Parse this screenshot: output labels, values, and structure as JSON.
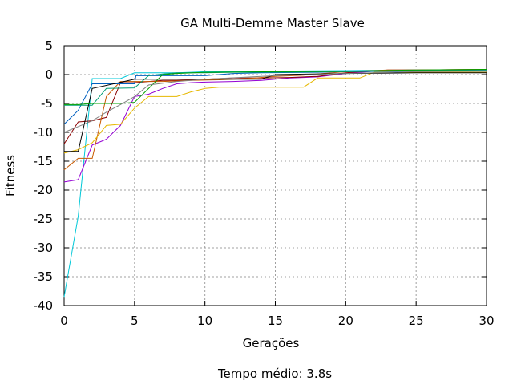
{
  "chart_data": {
    "type": "line",
    "title": "GA Multi-Demme Master Slave",
    "xlabel": "Gerações",
    "ylabel": "Fitness",
    "footer": "Tempo médio: 3.8s",
    "xlim": [
      0,
      30
    ],
    "ylim": [
      -40,
      5
    ],
    "xticks": [
      0,
      5,
      10,
      15,
      20,
      25,
      30
    ],
    "yticks": [
      -40,
      -35,
      -30,
      -25,
      -20,
      -15,
      -10,
      -5,
      0,
      5
    ],
    "grid": true,
    "legend": "none",
    "series": [
      {
        "color": "#00c8d8",
        "x": [
          0,
          1,
          2,
          3,
          4,
          5,
          6,
          7,
          8,
          9,
          10,
          15,
          20,
          25,
          30
        ],
        "y": [
          -38.5,
          -24.5,
          -0.7,
          -0.7,
          -0.7,
          0.3,
          0.3,
          0.3,
          0.3,
          0.4,
          0.5,
          0.6,
          0.7,
          0.8,
          0.8
        ]
      },
      {
        "color": "#9400d3",
        "x": [
          0,
          1,
          2,
          3,
          4,
          5,
          6,
          7,
          8,
          9,
          10,
          12,
          14,
          16,
          18,
          20,
          22,
          25,
          30
        ],
        "y": [
          -18.6,
          -18.2,
          -12.2,
          -11.2,
          -8.8,
          -3.8,
          -3.4,
          -2.4,
          -1.6,
          -1.4,
          -1.3,
          -1.2,
          -1.0,
          -0.6,
          -0.4,
          0.2,
          0.6,
          0.7,
          0.8
        ]
      },
      {
        "color": "#8b0000",
        "x": [
          0,
          1,
          2,
          3,
          4,
          5,
          6,
          7,
          8,
          10,
          12,
          14,
          16,
          18,
          20,
          23,
          25,
          30
        ],
        "y": [
          -12.0,
          -8.2,
          -8.0,
          -7.4,
          -1.4,
          -1.4,
          -1.2,
          -1.0,
          -1.0,
          -0.8,
          -0.6,
          -0.6,
          -0.5,
          -0.3,
          0.3,
          0.8,
          0.8,
          0.9
        ]
      },
      {
        "color": "#c85a00",
        "x": [
          0,
          1,
          2,
          3,
          4,
          5,
          7,
          9,
          11,
          13,
          15,
          17,
          20,
          23,
          25,
          30
        ],
        "y": [
          -16.5,
          -14.5,
          -14.5,
          -3.8,
          -1.2,
          -1.2,
          -1.2,
          -1.0,
          -0.9,
          -0.7,
          -0.3,
          -0.1,
          0.5,
          0.8,
          0.8,
          0.9
        ]
      },
      {
        "color": "#e6b800",
        "x": [
          0,
          1,
          2,
          3,
          4,
          5,
          6,
          7,
          8,
          9,
          10,
          11,
          12,
          17,
          18,
          20,
          21,
          22,
          30
        ],
        "y": [
          -13.6,
          -13.0,
          -11.8,
          -8.8,
          -8.6,
          -5.8,
          -3.8,
          -3.8,
          -3.8,
          -3.0,
          -2.4,
          -2.2,
          -2.2,
          -2.2,
          -0.6,
          -0.6,
          -0.6,
          0.4,
          0.4
        ]
      },
      {
        "color": "#0060c0",
        "x": [
          0,
          1,
          2,
          3,
          5,
          5.1,
          7,
          10,
          12,
          14,
          18,
          20,
          25,
          30
        ],
        "y": [
          -8.6,
          -6.2,
          -1.6,
          -1.6,
          -1.6,
          -0.2,
          -0.2,
          -0.2,
          0.2,
          0.3,
          0.4,
          0.5,
          0.6,
          0.6
        ]
      },
      {
        "color": "#009e73",
        "x": [
          0,
          1,
          2,
          3,
          5,
          6,
          7,
          8,
          10,
          12,
          15,
          20,
          25,
          30
        ],
        "y": [
          -5.3,
          -5.3,
          -5.3,
          -2.4,
          -2.3,
          -0.2,
          0.1,
          0.3,
          0.3,
          0.4,
          0.4,
          0.5,
          0.7,
          0.8
        ]
      },
      {
        "color": "#000000",
        "x": [
          0,
          1,
          2,
          5,
          10,
          14,
          15,
          20,
          25,
          30
        ],
        "y": [
          -13.3,
          -13.3,
          -2.4,
          -0.8,
          -0.8,
          -0.8,
          0.0,
          0.2,
          0.3,
          0.3
        ]
      },
      {
        "color": "#00a000",
        "x": [
          0,
          1,
          2,
          4,
          5,
          7,
          8,
          10,
          15,
          20,
          25,
          30
        ],
        "y": [
          -5.2,
          -5.2,
          -5.0,
          -5.0,
          -4.8,
          0.0,
          0.2,
          0.4,
          0.5,
          0.6,
          0.8,
          0.9
        ]
      },
      {
        "color": "#808080",
        "x": [
          0,
          1,
          2,
          3,
          4,
          5,
          6,
          8,
          10,
          15,
          20,
          25,
          30
        ],
        "y": [
          -10.0,
          -9.0,
          -8.0,
          -6.5,
          -5.2,
          -3.8,
          -1.8,
          -1.2,
          -0.8,
          -0.2,
          0.2,
          0.5,
          0.6
        ]
      }
    ]
  }
}
